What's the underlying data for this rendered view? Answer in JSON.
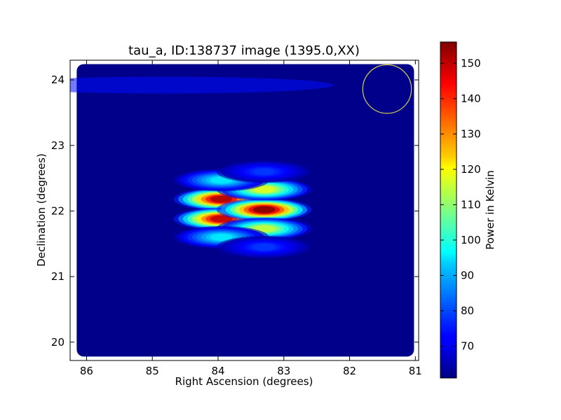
{
  "chart_data": {
    "type": "heatmap",
    "title": "tau_a, ID:138737 image (1395.0,XX)",
    "xlabel": "Right Ascension (degrees)",
    "ylabel": "Declination (degrees)",
    "xlim": [
      86.25,
      80.95
    ],
    "ylim": [
      19.72,
      24.3
    ],
    "x_ticks": [
      86,
      85,
      84,
      83,
      82,
      81
    ],
    "y_ticks": [
      20,
      21,
      22,
      23,
      24
    ],
    "colorbar": {
      "label": "Power in Kelvin",
      "colormap": "jet",
      "range": [
        61,
        156
      ],
      "ticks": [
        70,
        80,
        90,
        100,
        110,
        120,
        130,
        140,
        150
      ]
    },
    "background_level": 62,
    "map_extent": {
      "ra": [
        86.15,
        81.02
      ],
      "dec": [
        19.78,
        24.24
      ]
    },
    "faint_band": {
      "ra_center": 84.8,
      "dec_center": 23.92,
      "level": 74
    },
    "sources": [
      {
        "ra": 83.95,
        "dec": 22.18,
        "peak": 152
      },
      {
        "ra": 83.95,
        "dec": 21.88,
        "peak": 150
      },
      {
        "ra": 83.3,
        "dec": 22.02,
        "peak": 156
      },
      {
        "ra": 83.3,
        "dec": 22.33,
        "peak": 118
      },
      {
        "ra": 83.3,
        "dec": 21.73,
        "peak": 115
      },
      {
        "ra": 83.95,
        "dec": 22.47,
        "peak": 95
      },
      {
        "ra": 83.95,
        "dec": 21.6,
        "peak": 95
      },
      {
        "ra": 83.3,
        "dec": 22.6,
        "peak": 78
      },
      {
        "ra": 83.3,
        "dec": 21.45,
        "peak": 78
      }
    ],
    "beam_circle": {
      "ra": 81.43,
      "dec": 23.86,
      "radius_deg": 0.37,
      "color": "#d4d44a"
    }
  }
}
